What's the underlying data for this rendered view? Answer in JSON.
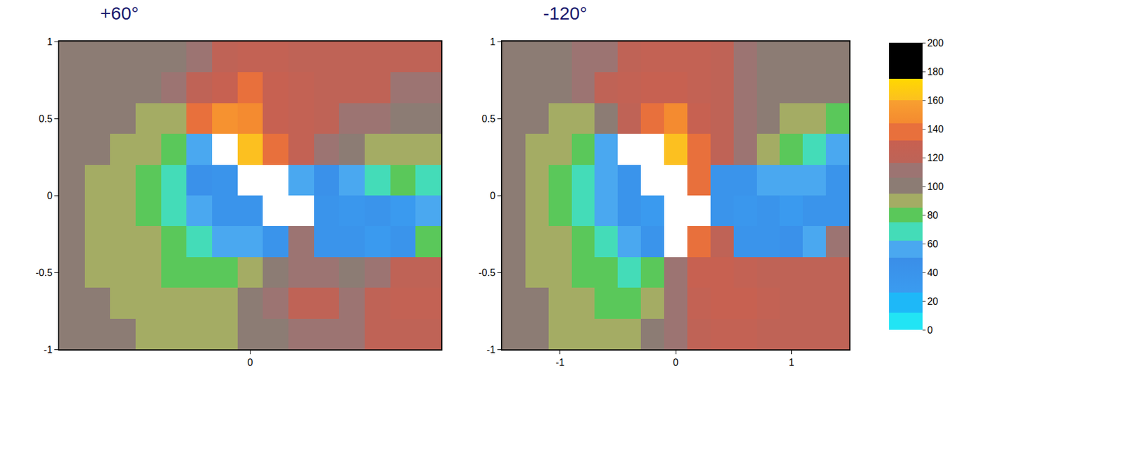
{
  "chart_data": [
    {
      "type": "heatmap",
      "title": "+60°",
      "x": [
        -1.4,
        -1.2,
        -1.0,
        -0.8,
        -0.6,
        -0.4,
        -0.2,
        0,
        0.2,
        0.4,
        0.6,
        0.8,
        1.0,
        1.2,
        1.4
      ],
      "y": [
        0.9,
        0.7,
        0.5,
        0.3,
        0.1,
        -0.1,
        -0.3,
        -0.5,
        -0.7,
        -0.9
      ],
      "values": [
        [
          100,
          100,
          100,
          100,
          100,
          110,
          120,
          125,
          125,
          120,
          120,
          120,
          120,
          120,
          120
        ],
        [
          100,
          100,
          100,
          100,
          110,
          120,
          130,
          135,
          130,
          125,
          120,
          120,
          120,
          115,
          110
        ],
        [
          100,
          100,
          100,
          90,
          90,
          140,
          150,
          145,
          130,
          125,
          120,
          115,
          110,
          100,
          95
        ],
        [
          100,
          100,
          90,
          90,
          80,
          50,
          null,
          160,
          140,
          125,
          115,
          100,
          90,
          90,
          85
        ],
        [
          100,
          90,
          90,
          80,
          70,
          45,
          40,
          null,
          null,
          50,
          45,
          60,
          70,
          80,
          70
        ],
        [
          100,
          90,
          90,
          80,
          70,
          60,
          40,
          40,
          null,
          null,
          40,
          35,
          40,
          30,
          50
        ],
        [
          100,
          90,
          90,
          85,
          75,
          70,
          60,
          50,
          40,
          110,
          40,
          40,
          30,
          40,
          80
        ],
        [
          100,
          90,
          90,
          85,
          80,
          75,
          80,
          90,
          100,
          110,
          110,
          100,
          110,
          120,
          120
        ],
        [
          100,
          100,
          90,
          90,
          85,
          90,
          90,
          100,
          110,
          120,
          120,
          110,
          120,
          125,
          125
        ],
        [
          100,
          100,
          100,
          90,
          90,
          90,
          90,
          100,
          100,
          110,
          110,
          110,
          120,
          120,
          120
        ]
      ],
      "xlim": [
        -1.5,
        1.5
      ],
      "ylim": [
        -1,
        1
      ],
      "xticks": [
        0
      ],
      "yticks": [
        -1,
        -0.5,
        0,
        0.5,
        1
      ],
      "colorbar": {
        "range": [
          0,
          200
        ],
        "ticks": [
          0,
          20,
          40,
          60,
          80,
          100,
          120,
          140,
          160,
          180,
          200
        ]
      }
    },
    {
      "type": "heatmap",
      "title": "-120°",
      "x": [
        -1.4,
        -1.2,
        -1.0,
        -0.8,
        -0.6,
        -0.4,
        -0.2,
        0,
        0.2,
        0.4,
        0.6,
        0.8,
        1.0,
        1.2,
        1.4
      ],
      "y": [
        0.9,
        0.7,
        0.5,
        0.3,
        0.1,
        -0.1,
        -0.3,
        -0.5,
        -0.7,
        -0.9
      ],
      "values": [
        [
          100,
          100,
          100,
          110,
          110,
          120,
          125,
          125,
          125,
          120,
          110,
          100,
          100,
          100,
          100
        ],
        [
          100,
          100,
          100,
          110,
          120,
          125,
          130,
          130,
          125,
          120,
          110,
          100,
          100,
          100,
          100
        ],
        [
          100,
          100,
          90,
          90,
          100,
          120,
          140,
          145,
          130,
          120,
          110,
          100,
          90,
          85,
          80
        ],
        [
          100,
          90,
          90,
          80,
          50,
          null,
          null,
          160,
          140,
          120,
          110,
          90,
          80,
          70,
          60
        ],
        [
          100,
          90,
          80,
          70,
          50,
          40,
          null,
          null,
          140,
          40,
          40,
          50,
          60,
          60,
          40
        ],
        [
          100,
          90,
          80,
          70,
          60,
          40,
          30,
          null,
          null,
          40,
          35,
          40,
          30,
          40,
          40
        ],
        [
          100,
          90,
          85,
          80,
          70,
          50,
          40,
          null,
          140,
          120,
          40,
          40,
          45,
          60,
          110
        ],
        [
          100,
          90,
          90,
          80,
          75,
          70,
          80,
          110,
          130,
          130,
          125,
          120,
          120,
          120,
          120
        ],
        [
          100,
          100,
          90,
          85,
          80,
          80,
          90,
          110,
          125,
          130,
          130,
          125,
          120,
          120,
          120
        ],
        [
          100,
          100,
          90,
          90,
          85,
          90,
          100,
          110,
          120,
          125,
          125,
          120,
          120,
          120,
          120
        ]
      ],
      "xlim": [
        -1.5,
        1.5
      ],
      "ylim": [
        -1,
        1
      ],
      "xticks": [
        -1,
        0,
        1
      ],
      "yticks": [
        -1,
        -0.5,
        0,
        0.5,
        1
      ]
    }
  ]
}
